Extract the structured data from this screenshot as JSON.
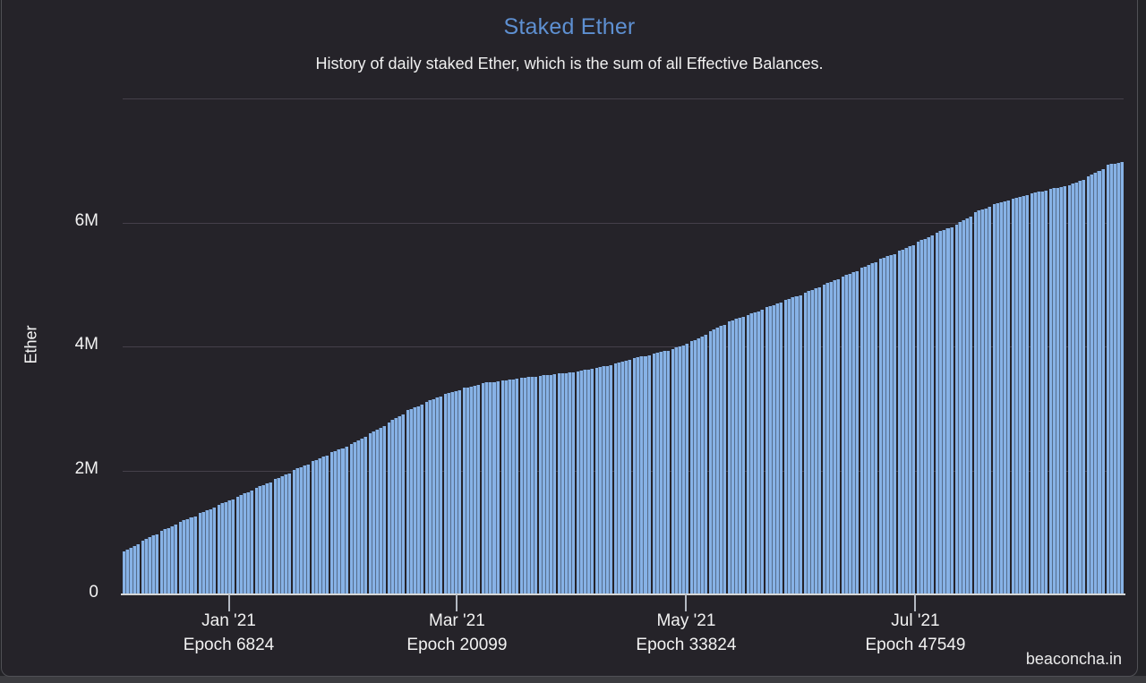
{
  "page": {
    "watermark": "beaconcha.in"
  },
  "chart_data": {
    "type": "bar",
    "title": "Staked Ether",
    "subtitle": "History of daily staked Ether, which is the sum of all Effective Balances.",
    "ylabel": "Ether",
    "unit": "million ETH",
    "ylim": [
      0,
      8
    ],
    "grid": "horizontal-only",
    "y_gridlines": [
      2,
      4,
      6,
      8
    ],
    "y_ticks": [
      {
        "value": 0,
        "label": "0"
      },
      {
        "value": 2,
        "label": "2M"
      },
      {
        "value": 4,
        "label": "4M"
      },
      {
        "value": 6,
        "label": "6M"
      }
    ],
    "x_ticks": [
      {
        "label": "Jan '21",
        "sublabel": "Epoch 6824",
        "pos": 0.106
      },
      {
        "label": "Mar '21",
        "sublabel": "Epoch 20099",
        "pos": 0.334
      },
      {
        "label": "May '21",
        "sublabel": "Epoch 33824",
        "pos": 0.563
      },
      {
        "label": "Jul '21",
        "sublabel": "Epoch 47549",
        "pos": 0.792
      }
    ],
    "series": [
      {
        "name": "Staked Ether",
        "values_million_eth": [
          0.7,
          0.87,
          1.03,
          1.17,
          1.31,
          1.45,
          1.58,
          1.72,
          1.86,
          2.01,
          2.15,
          2.29,
          2.43,
          2.6,
          2.78,
          2.97,
          3.11,
          3.24,
          3.33,
          3.41,
          3.45,
          3.49,
          3.53,
          3.56,
          3.6,
          3.66,
          3.72,
          3.81,
          3.89,
          3.96,
          4.08,
          4.25,
          4.41,
          4.51,
          4.63,
          4.75,
          4.87,
          5.0,
          5.13,
          5.27,
          5.41,
          5.54,
          5.69,
          5.84,
          5.97,
          6.17,
          6.29,
          6.39,
          6.47,
          6.54,
          6.6,
          6.74,
          6.93
        ]
      }
    ],
    "colors": {
      "bar": "#87b2e6",
      "title": "#5e90d2",
      "background": "#252329",
      "gridline": "#45404a",
      "axis_line": "#d6d6d6",
      "text": "#f2f2f2"
    }
  }
}
